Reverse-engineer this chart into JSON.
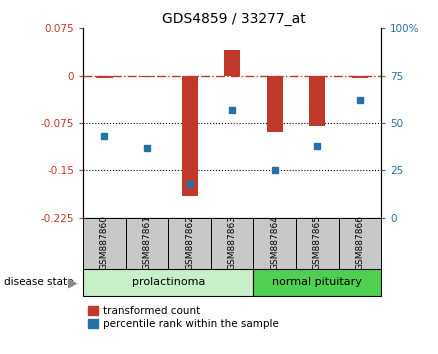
{
  "title": "GDS4859 / 33277_at",
  "samples": [
    "GSM887860",
    "GSM887861",
    "GSM887862",
    "GSM887863",
    "GSM887864",
    "GSM887865",
    "GSM887866"
  ],
  "bar_values": [
    -0.003,
    -0.002,
    -0.19,
    0.04,
    -0.09,
    -0.08,
    -0.003
  ],
  "dot_percentiles": [
    43,
    37,
    18,
    57,
    25,
    38,
    62
  ],
  "ylim_min": -0.225,
  "ylim_max": 0.075,
  "yticks_left": [
    0.075,
    0,
    -0.075,
    -0.15,
    -0.225
  ],
  "ytick_labels_left": [
    "0.075",
    "0",
    "-0.075",
    "-0.15",
    "-0.225"
  ],
  "yticks_right": [
    100,
    75,
    50,
    25,
    0
  ],
  "ytick_labels_right": [
    "100%",
    "75",
    "50",
    "25",
    "0"
  ],
  "group1_label": "prolactinoma",
  "group1_count": 4,
  "group2_label": "normal pituitary",
  "group2_count": 3,
  "disease_state_label": "disease state",
  "legend_red": "transformed count",
  "legend_blue": "percentile rank within the sample",
  "bar_color": "#C0392B",
  "dot_color": "#2471A3",
  "group1_bg": "#C8F0C8",
  "group2_bg": "#50D050",
  "sample_bg": "#C8C8C8",
  "hline0_color": "#C0392B",
  "hline_ref_color": "black"
}
